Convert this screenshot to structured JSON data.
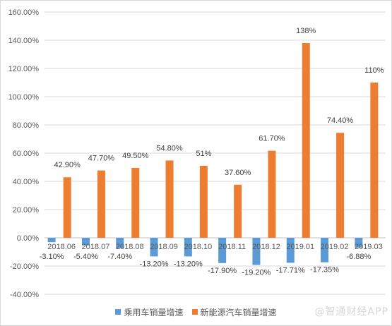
{
  "chart_data": {
    "type": "bar",
    "categories": [
      "2018.06",
      "2018.07",
      "2018.08",
      "2018.09",
      "2018.10",
      "2018.11",
      "2018.12",
      "2019.01",
      "2019.02",
      "2019.03"
    ],
    "series": [
      {
        "name": "乘用车销量增速",
        "color": "#5B9BD5",
        "values": [
          -3.1,
          -5.4,
          -7.4,
          -13.2,
          -13.2,
          -17.9,
          -19.2,
          -17.71,
          -17.35,
          -6.88
        ],
        "labels": [
          "-3.10%",
          "-5.40%",
          "-7.40%",
          "-13.20%",
          "-13.20%",
          "-17.90%",
          "-19.20%",
          "-17.71%",
          "-17.35%",
          "-6.88%"
        ]
      },
      {
        "name": "新能源汽车销量增速",
        "color": "#ED7D31",
        "values": [
          42.9,
          47.7,
          49.5,
          54.8,
          51,
          37.6,
          61.7,
          138,
          74.4,
          110
        ],
        "labels": [
          "42.90%",
          "47.70%",
          "49.50%",
          "54.80%",
          "51%",
          "37.60%",
          "61.70%",
          "138%",
          "74.40%",
          "110%"
        ]
      }
    ],
    "yticks": [
      "160.00%",
      "140.00%",
      "120.00%",
      "100.00%",
      "80.00%",
      "60.00%",
      "40.00%",
      "20.00%",
      "0.00%",
      "-20.00%",
      "-40.00%"
    ],
    "ylim": [
      -40,
      160
    ],
    "grid": true,
    "legend_position": "bottom"
  },
  "watermark": "@智通财经APP"
}
